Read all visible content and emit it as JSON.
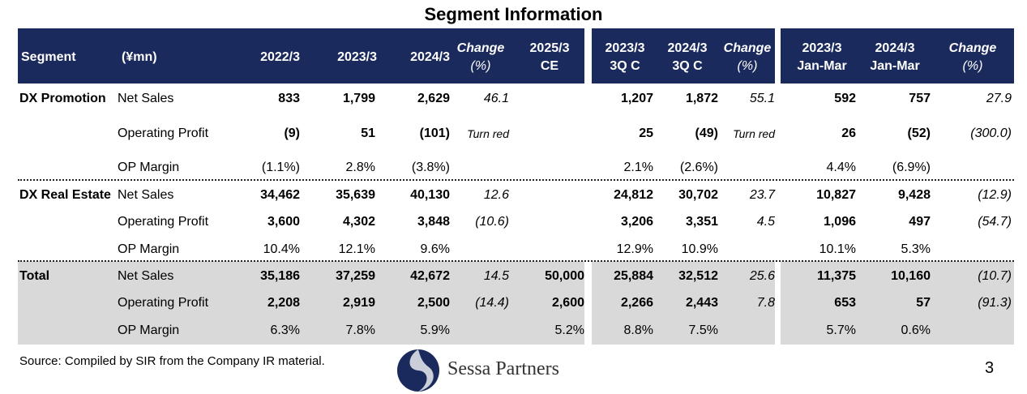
{
  "title": "Segment Information",
  "headers": {
    "segment": "Segment",
    "unit": "(¥mn)",
    "y2022": "2022/3",
    "y2023": "2023/3",
    "y2024": "2024/3",
    "change1_l1": "Change",
    "change1_l2": "(%)",
    "ce_l1": "2025/3",
    "ce_l2": "CE",
    "q23_l1": "2023/3",
    "q23_l2": "3Q C",
    "q24_l1": "2024/3",
    "q24_l2": "3Q C",
    "change2_l1": "Change",
    "change2_l2": "(%)",
    "jm23_l1": "2023/3",
    "jm23_l2": "Jan-Mar",
    "jm24_l1": "2024/3",
    "jm24_l2": "Jan-Mar",
    "change3_l1": "Change",
    "change3_l2": "(%)"
  },
  "rows": [
    {
      "segment": "DX Promotion",
      "label": "Net Sales",
      "y2022": "833",
      "y2023": "1,799",
      "y2024": "2,629",
      "chg1": "46.1",
      "ce": "",
      "q23": "1,207",
      "q24": "1,872",
      "chg2": "55.1",
      "jm23": "592",
      "jm24": "757",
      "chg3": "27.9"
    },
    {
      "segment": "",
      "label": "Operating Profit",
      "y2022": "(9)",
      "y2023": "51",
      "y2024": "(101)",
      "chg1": "Turn red",
      "ce": "",
      "q23": "25",
      "q24": "(49)",
      "chg2": "Turn red",
      "jm23": "26",
      "jm24": "(52)",
      "chg3": "(300.0)"
    },
    {
      "segment": "",
      "label": "OP Margin",
      "y2022": "(1.1%)",
      "y2023": "2.8%",
      "y2024": "(3.8%)",
      "chg1": "",
      "ce": "",
      "q23": "2.1%",
      "q24": "(2.6%)",
      "chg2": "",
      "jm23": "4.4%",
      "jm24": "(6.9%)",
      "chg3": ""
    },
    {
      "segment": "DX Real Estate",
      "label": "Net Sales",
      "y2022": "34,462",
      "y2023": "35,639",
      "y2024": "40,130",
      "chg1": "12.6",
      "ce": "",
      "q23": "24,812",
      "q24": "30,702",
      "chg2": "23.7",
      "jm23": "10,827",
      "jm24": "9,428",
      "chg3": "(12.9)"
    },
    {
      "segment": "",
      "label": "Operating Profit",
      "y2022": "3,600",
      "y2023": "4,302",
      "y2024": "3,848",
      "chg1": "(10.6)",
      "ce": "",
      "q23": "3,206",
      "q24": "3,351",
      "chg2": "4.5",
      "jm23": "1,096",
      "jm24": "497",
      "chg3": "(54.7)"
    },
    {
      "segment": "",
      "label": "OP Margin",
      "y2022": "10.4%",
      "y2023": "12.1%",
      "y2024": "9.6%",
      "chg1": "",
      "ce": "",
      "q23": "12.9%",
      "q24": "10.9%",
      "chg2": "",
      "jm23": "10.1%",
      "jm24": "5.3%",
      "chg3": ""
    },
    {
      "segment": "Total",
      "label": "Net Sales",
      "y2022": "35,186",
      "y2023": "37,259",
      "y2024": "42,672",
      "chg1": "14.5",
      "ce": "50,000",
      "q23": "25,884",
      "q24": "32,512",
      "chg2": "25.6",
      "jm23": "11,375",
      "jm24": "10,160",
      "chg3": "(10.7)"
    },
    {
      "segment": "",
      "label": "Operating Profit",
      "y2022": "2,208",
      "y2023": "2,919",
      "y2024": "2,500",
      "chg1": "(14.4)",
      "ce": "2,600",
      "q23": "2,266",
      "q24": "2,443",
      "chg2": "7.8",
      "jm23": "653",
      "jm24": "57",
      "chg3": "(91.3)"
    },
    {
      "segment": "",
      "label": "OP Margin",
      "y2022": "6.3%",
      "y2023": "7.8%",
      "y2024": "5.9%",
      "chg1": "",
      "ce": "5.2%",
      "q23": "8.8%",
      "q24": "7.5%",
      "chg2": "",
      "jm23": "5.7%",
      "jm24": "0.6%",
      "chg3": ""
    }
  ],
  "footer": {
    "source": "Source: Compiled by SIR from the Company IR material.",
    "brand": "Sessa Partners",
    "brand_icon": "sessa-logo-icon",
    "page": "3"
  },
  "colors": {
    "header_bg": "#1b2a5c",
    "total_bg": "#d9d9d9"
  }
}
